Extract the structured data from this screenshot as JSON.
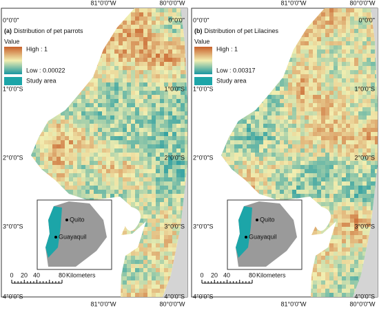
{
  "panels": [
    {
      "label": "(a)",
      "title": "Distribution of pet parrots",
      "legend": {
        "heading": "Value",
        "high": "High : 1",
        "low": "Low : 0.00022",
        "study_area": "Study area"
      },
      "inset": {
        "cities": [
          "Quito",
          "Guayaquil"
        ]
      },
      "scale_bar": {
        "ticks": [
          "0",
          "20",
          "40",
          "80"
        ],
        "unit": "Kilometers"
      },
      "lon_labels_top": [
        "81°0'0\"W",
        "80°0'0\"W"
      ],
      "lon_labels_bottom": [
        "81°0'0\"W",
        "80°0'0\"W"
      ],
      "lat_labels_left": [
        "0°0'0\"",
        "1°0'0\"S",
        "2°0'0\"S",
        "3°0'0\"S",
        "4°0'0\"S"
      ],
      "lat_labels_right": [
        "0°0'0\"",
        "1°0'0\"S",
        "2°0'0\"S",
        "3°0'0\"S",
        "4°0'0\"S"
      ]
    },
    {
      "label": "(b)",
      "title": "Distribution of pet Lilacines",
      "legend": {
        "heading": "Value",
        "high": "High : 1",
        "low": "Low : 0.00317",
        "study_area": "Study area"
      },
      "inset": {
        "cities": [
          "Quito",
          "Guayaquil"
        ]
      },
      "scale_bar": {
        "ticks": [
          "0",
          "20",
          "40",
          "80"
        ],
        "unit": "Kilometers"
      },
      "lon_labels_top": [
        "81°0'0\"W",
        "80°0'0\"W"
      ],
      "lon_labels_bottom": [
        "81°0'0\"W",
        "80°0'0\"W"
      ],
      "lat_labels_left": [
        "0°0'0\"",
        "1°0'0\"S",
        "2°0'0\"S",
        "3°0'0\"S",
        "4°0'0\"S"
      ],
      "lat_labels_right": [
        "0°0'0\"",
        "1°0'0\"S",
        "2°0'0\"S",
        "3°0'0\"S",
        "4°0'0\"S"
      ]
    }
  ]
}
